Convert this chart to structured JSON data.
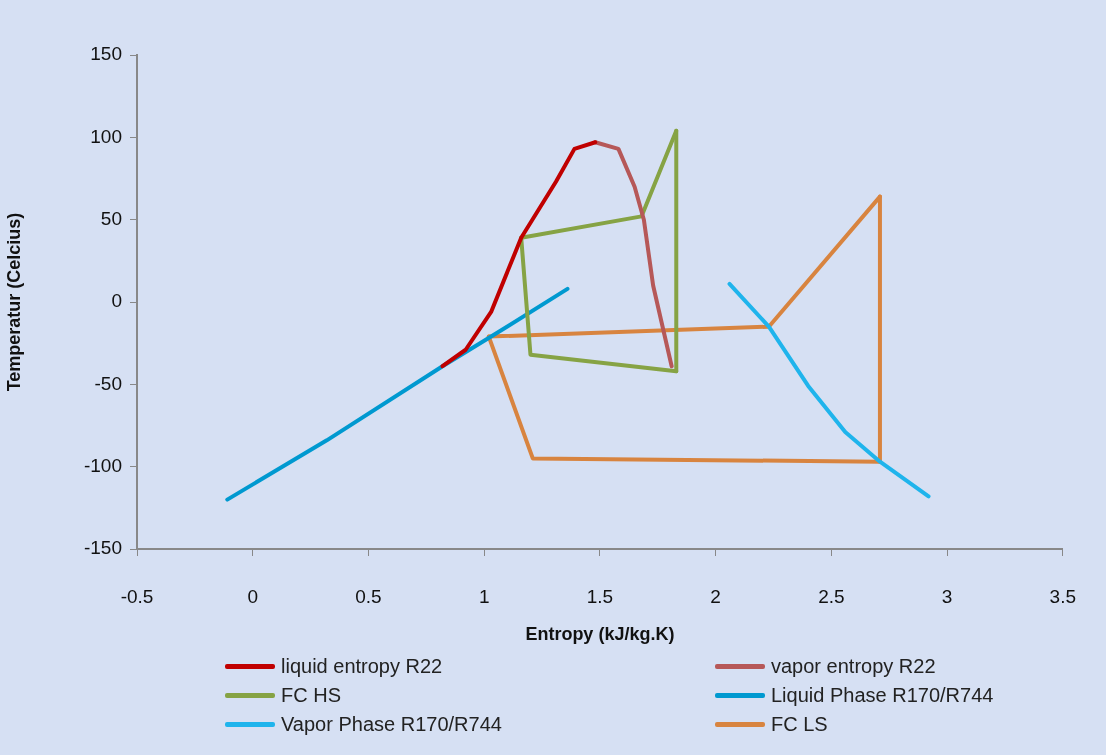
{
  "chart_data": {
    "type": "line",
    "xlabel": "Entropy (kJ/kg.K)",
    "ylabel": "Temperatur (Celcius)",
    "xlim": [
      -0.5,
      3.5
    ],
    "xticks": [
      -0.5,
      0,
      0.5,
      1,
      1.5,
      2,
      2.5,
      3,
      3.5
    ],
    "ylim": [
      -150,
      150
    ],
    "yticks": [
      -150,
      -100,
      -50,
      0,
      50,
      100,
      150
    ],
    "grid": false,
    "legend": "bottom",
    "marker": "none",
    "line_style": "solid",
    "series": [
      {
        "name": "liquid entropy R22",
        "color": "#c00000",
        "x": [
          0.82,
          0.92,
          1.03,
          1.16,
          1.31,
          1.39,
          1.48
        ],
        "values": [
          -39,
          -29,
          -6,
          39,
          73,
          93,
          97
        ]
      },
      {
        "name": "vapor entropy R22",
        "color": "#b65858",
        "x": [
          1.48,
          1.58,
          1.65,
          1.69,
          1.73,
          1.81
        ],
        "values": [
          97,
          93,
          70,
          50,
          10,
          -39
        ]
      },
      {
        "name": "FC HS",
        "color": "#86a344",
        "x": [
          1.16,
          1.68,
          1.83
        ],
        "values": [
          39,
          52,
          104
        ]
      },
      {
        "color": "#86a344",
        "x": [
          1.83,
          1.83
        ],
        "values": [
          104,
          -42
        ]
      },
      {
        "color": "#86a344",
        "x": [
          1.16,
          1.2,
          1.83
        ],
        "values": [
          39,
          -32,
          -42
        ]
      },
      {
        "name": "Liquid Phase R170/R744",
        "color": "#0099d0",
        "x": [
          -0.11,
          0.32,
          0.82,
          1.03,
          1.36
        ],
        "values": [
          -120,
          -84,
          -39,
          -21,
          8
        ]
      },
      {
        "name": "Vapor Phase R170/R744",
        "color": "#1fb4ec",
        "x": [
          2.06,
          2.23,
          2.4,
          2.56,
          2.71,
          2.92
        ],
        "values": [
          11,
          -15,
          -51,
          -79,
          -97,
          -118
        ]
      },
      {
        "name": "FC LS",
        "color": "#d8843f",
        "x": [
          1.02,
          2.23,
          2.71
        ],
        "values": [
          -21,
          -15,
          64
        ]
      },
      {
        "color": "#d8843f",
        "x": [
          2.71,
          2.71
        ],
        "values": [
          64,
          -97
        ]
      },
      {
        "color": "#d8843f",
        "x": [
          1.02,
          1.21,
          2.71
        ],
        "values": [
          -21,
          -95,
          -97
        ]
      }
    ]
  }
}
